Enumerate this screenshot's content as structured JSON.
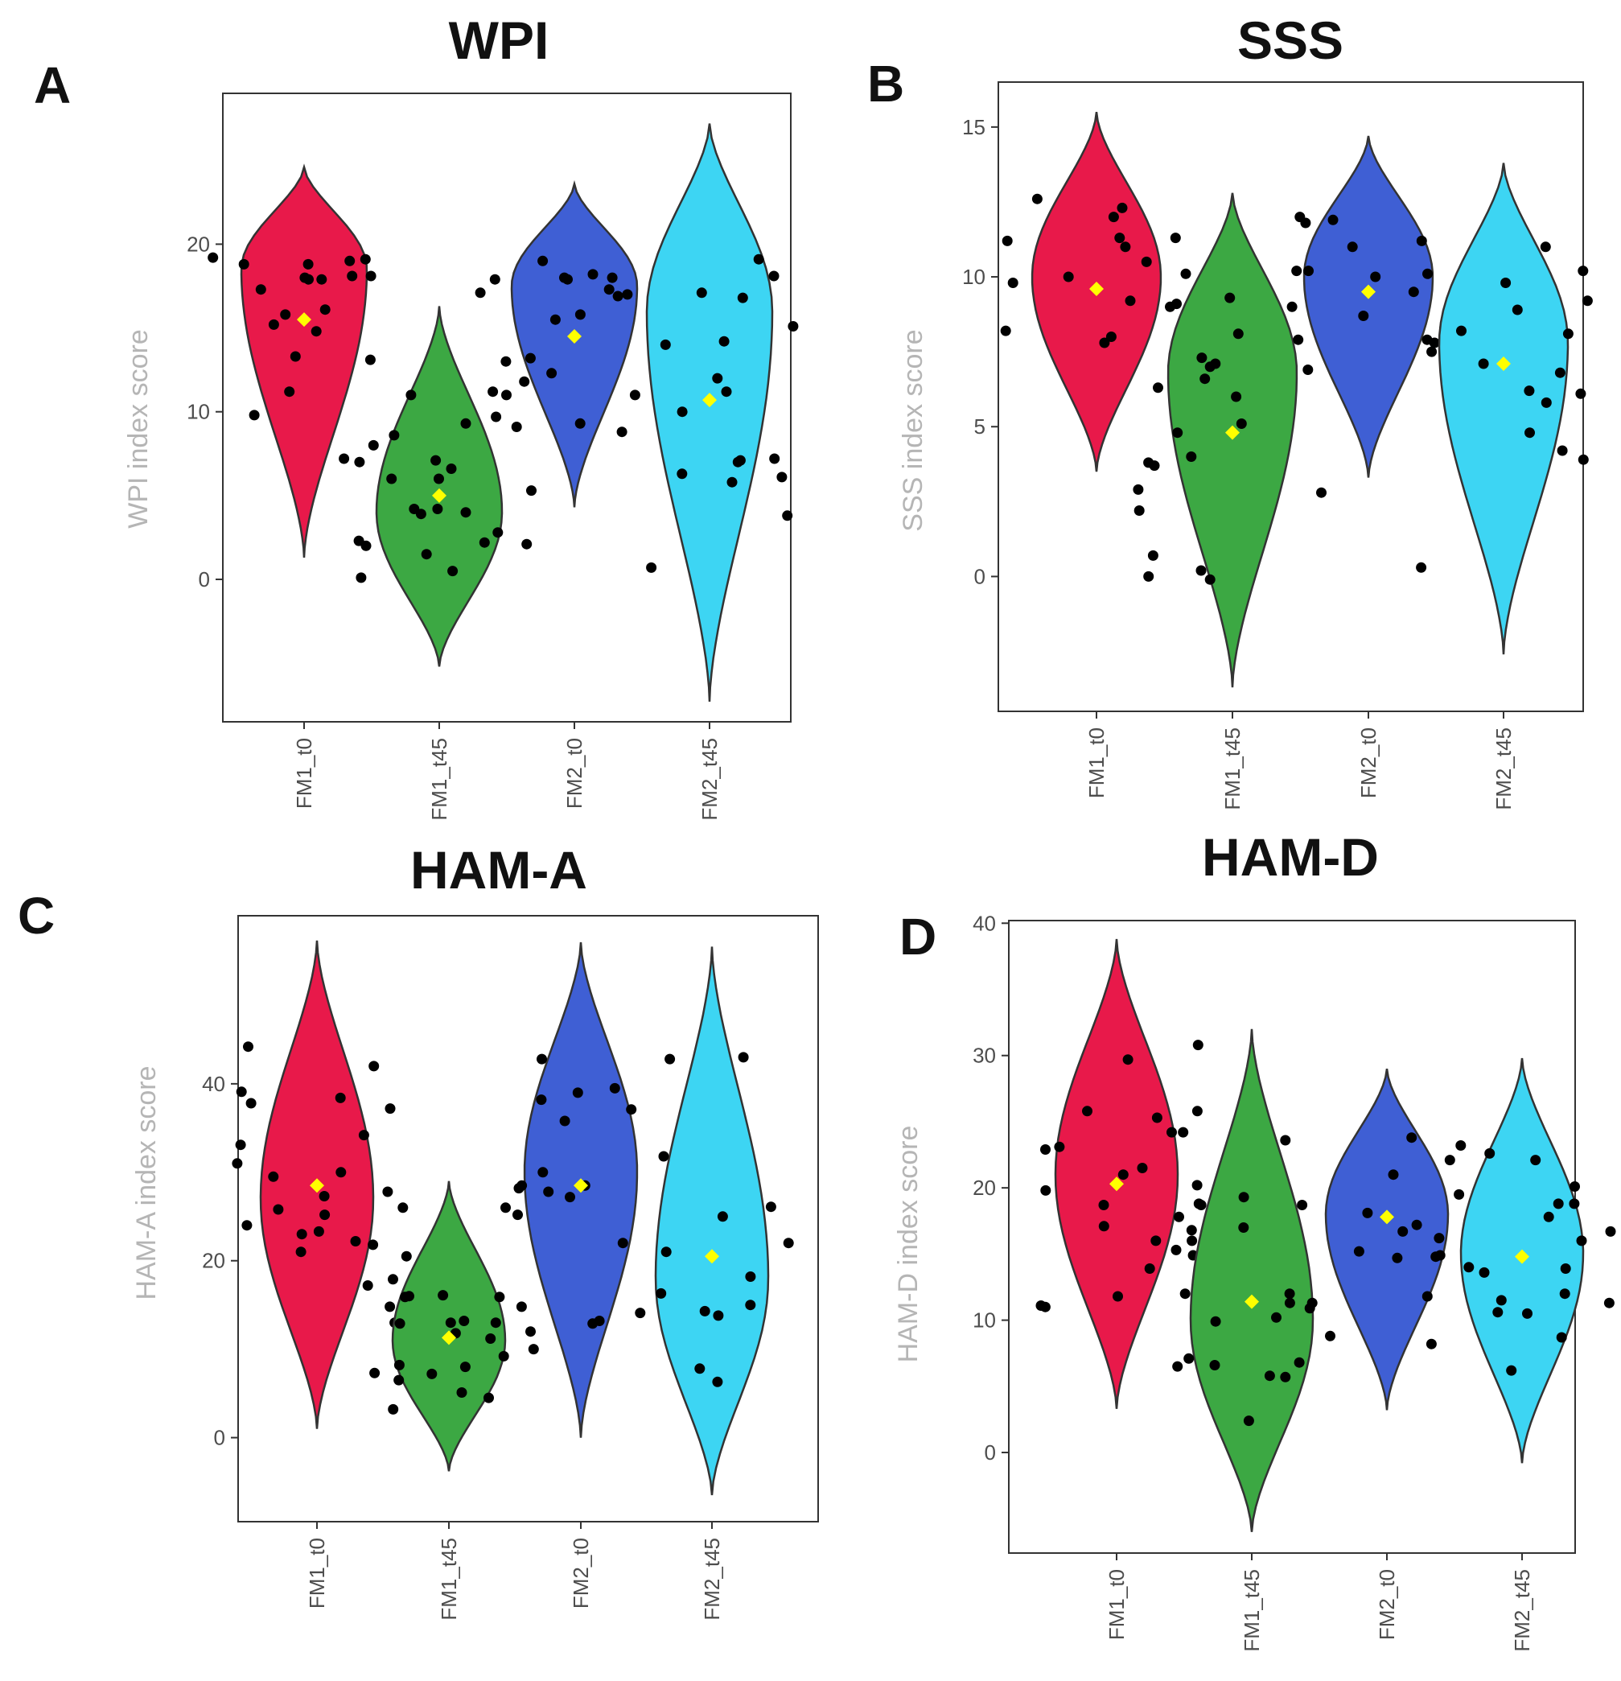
{
  "chart_data": [
    {
      "panel": "A",
      "type": "violin",
      "title": "WPI",
      "ylabel": "WPI index score",
      "xlabel": "",
      "categories": [
        "FM1_t0",
        "FM1_t45",
        "FM2_t0",
        "FM2_t45"
      ],
      "ylim": [
        -8.5,
        29
      ],
      "yticks": [
        0,
        10,
        20
      ],
      "colors": [
        "#e8194a",
        "#3ca843",
        "#3f5fd4",
        "#3dd5f3"
      ],
      "groups": [
        {
          "name": "FM1_t0",
          "mean": 15.5,
          "min": 1.3,
          "max": 24.6,
          "mode": 18.5,
          "points": [
            18.8,
            19.0,
            14.8,
            13.3,
            17.3,
            19.1,
            18.1,
            18.0,
            17.9,
            18.8,
            19.2,
            17.9,
            16.1,
            15.8,
            13.1,
            15.2,
            11.2,
            9.8,
            7.6,
            7.2,
            8.0,
            18.1
          ]
        },
        {
          "name": "FM1_t45",
          "mean": 5.0,
          "min": -5.2,
          "max": 16.3,
          "mode": 4.0,
          "points": [
            6.6,
            4.2,
            3.9,
            0.5,
            2.0,
            4.0,
            2.1,
            6.0,
            8.6,
            11.2,
            11.0,
            9.3,
            7.0,
            6.0,
            2.8,
            2.2,
            0.1,
            1.5,
            5.3,
            9.1,
            7.1,
            11.0,
            4.2,
            2.3
          ]
        },
        {
          "name": "FM2_t0",
          "mean": 14.5,
          "min": 4.3,
          "max": 23.6,
          "mode": 17.5,
          "points": [
            10.9,
            14.0,
            13.0,
            18.0,
            17.9,
            16.3,
            15.8,
            15.5,
            18.2,
            18.0,
            17.9,
            17.1,
            16.9,
            19.0,
            11.8,
            11.0,
            10.1,
            13.2,
            9.7,
            9.3,
            12.3,
            17.3
          ]
        },
        {
          "name": "FM2_t45",
          "mean": 10.7,
          "min": -7.3,
          "max": 27.2,
          "mode": 16.0,
          "points": [
            5.8,
            7.1,
            7.2,
            10.0,
            18.1,
            17.1,
            14.0,
            11.2,
            8.8,
            6.3,
            6.1,
            0.7,
            3.8,
            7.0,
            19.1,
            17.0,
            16.8,
            15.1,
            14.2,
            12.0
          ]
        }
      ]
    },
    {
      "panel": "B",
      "type": "violin",
      "title": "SSS",
      "ylabel": "SSS index score",
      "xlabel": "",
      "categories": [
        "FM1_t0",
        "FM1_t45",
        "FM2_t0",
        "FM2_t45"
      ],
      "ylim": [
        -4.5,
        16.5
      ],
      "yticks": [
        0,
        5,
        10,
        15
      ],
      "colors": [
        "#e8194a",
        "#3ca843",
        "#3f5fd4",
        "#3dd5f3"
      ],
      "groups": [
        {
          "name": "FM1_t0",
          "mean": 9.6,
          "min": 3.5,
          "max": 15.5,
          "mode": 10.0,
          "points": [
            12.0,
            11.2,
            10.0,
            9.0,
            12.6,
            11.3,
            11.0,
            10.5,
            9.8,
            9.2,
            8.3,
            8.0,
            7.8,
            12.3,
            11.3,
            10.1,
            9.1,
            8.2,
            6.3,
            6.8
          ]
        },
        {
          "name": "FM1_t45",
          "mean": 4.8,
          "min": -3.7,
          "max": 12.8,
          "mode": 6.8,
          "points": [
            7.0,
            6.9,
            7.1,
            4.0,
            2.9,
            2.2,
            5.1,
            6.0,
            6.6,
            0.2,
            0.0,
            0.7,
            2.8,
            3.8,
            4.8,
            8.1,
            9.3,
            7.3,
            3.7,
            -0.1
          ]
        },
        {
          "name": "FM2_t0",
          "mean": 9.5,
          "min": 3.3,
          "max": 14.7,
          "mode": 10.0,
          "points": [
            12.0,
            11.2,
            10.2,
            10.0,
            8.3,
            7.2,
            7.9,
            8.2,
            9.5,
            10.2,
            11.8,
            11.0,
            10.1,
            9.0,
            7.8,
            6.3,
            11.9,
            8.7
          ]
        },
        {
          "name": "FM2_t45",
          "mean": 7.1,
          "min": -2.6,
          "max": 13.8,
          "mode": 7.8,
          "points": [
            9.2,
            8.1,
            6.8,
            5.8,
            4.2,
            8.9,
            7.1,
            6.2,
            9.8,
            10.2,
            11.0,
            7.9,
            8.2,
            6.1,
            4.8,
            3.9,
            0.3,
            7.5
          ]
        }
      ]
    },
    {
      "panel": "C",
      "type": "violin",
      "title": "HAM-A",
      "ylabel": "HAM-A index score",
      "xlabel": "",
      "categories": [
        "FM1_t0",
        "FM1_t45",
        "FM2_t0",
        "FM2_t45"
      ],
      "ylim": [
        -9.5,
        59
      ],
      "yticks": [
        0,
        20,
        40
      ],
      "colors": [
        "#e8194a",
        "#3ca843",
        "#3f5fd4",
        "#3dd5f3"
      ],
      "groups": [
        {
          "name": "FM1_t0",
          "mean": 28.5,
          "min": 1.0,
          "max": 56.2,
          "mode": 27.0,
          "points": [
            38.4,
            23.3,
            14.8,
            22.2,
            24.0,
            25.8,
            27.8,
            30.0,
            37.2,
            39.1,
            37.8,
            33.1,
            31.0,
            29.5,
            27.3,
            25.2,
            23.0,
            21.0,
            13.0,
            44.2,
            42.0,
            34.2,
            26.0,
            17.2
          ]
        },
        {
          "name": "FM1_t45",
          "mean": 11.3,
          "min": -3.8,
          "max": 29.0,
          "mode": 11.0,
          "points": [
            8.0,
            7.2,
            6.5,
            9.2,
            11.8,
            13.0,
            15.9,
            16.0,
            13.2,
            12.0,
            14.8,
            11.2,
            7.3,
            10.0,
            5.1,
            3.2,
            4.5,
            12.9,
            17.9,
            20.5,
            21.8,
            13.0,
            8.2,
            16.1
          ]
        },
        {
          "name": "FM2_t0",
          "mean": 28.5,
          "min": 0.0,
          "max": 56.0,
          "mode": 30.0,
          "points": [
            39.5,
            35.8,
            28.2,
            22.0,
            13.2,
            38.2,
            28.5,
            27.8,
            27.2,
            25.2,
            26.0,
            30.0,
            42.8,
            39.0,
            37.1,
            28.5,
            15.9,
            12.9
          ]
        },
        {
          "name": "FM2_t45",
          "mean": 20.5,
          "min": -6.5,
          "max": 55.5,
          "mode": 18.0,
          "points": [
            31.8,
            21.0,
            14.3,
            6.3,
            42.8,
            18.2,
            16.3,
            25.0,
            22.0,
            15.0,
            13.8,
            7.8,
            26.1,
            43.0,
            14.1
          ]
        }
      ]
    },
    {
      "panel": "D",
      "type": "violin",
      "title": "HAM-D",
      "ylabel": "HAM-D index score",
      "xlabel": "",
      "categories": [
        "FM1_t0",
        "FM1_t45",
        "FM2_t0",
        "FM2_t45"
      ],
      "ylim": [
        -7.6,
        40.2
      ],
      "yticks": [
        0,
        10,
        20,
        30,
        40
      ],
      "colors": [
        "#e8194a",
        "#3ca843",
        "#3f5fd4",
        "#3dd5f3"
      ],
      "groups": [
        {
          "name": "FM1_t0",
          "mean": 20.3,
          "min": 3.3,
          "max": 38.8,
          "mode": 21.0,
          "points": [
            29.7,
            25.8,
            25.3,
            21.0,
            18.7,
            17.8,
            13.9,
            11.1,
            18.7,
            20.2,
            21.5,
            22.9,
            23.1,
            19.8,
            16.0,
            14.9,
            30.8,
            25.8,
            24.2,
            18.8,
            11.0,
            11.8,
            17.1
          ]
        },
        {
          "name": "FM1_t45",
          "mean": 11.4,
          "min": -6.0,
          "max": 32.0,
          "mode": 10.0,
          "points": [
            23.6,
            19.3,
            16.8,
            10.9,
            10.2,
            6.5,
            24.2,
            17.0,
            15.3,
            12.0,
            11.3,
            9.9,
            8.8,
            6.6,
            7.1,
            13.8,
            16.0,
            12.0,
            11.3,
            5.8,
            5.7,
            2.4,
            6.8
          ]
        },
        {
          "name": "FM2_t0",
          "mean": 17.8,
          "min": 3.2,
          "max": 29.0,
          "mode": 18.0,
          "points": [
            16.2,
            14.7,
            18.7,
            18.1,
            17.6,
            16.7,
            17.2,
            22.1,
            23.2,
            23.8,
            21.0,
            19.5,
            18.8,
            15.2,
            14.8,
            11.8,
            8.2
          ]
        },
        {
          "name": "FM2_t45",
          "mean": 14.8,
          "min": -0.8,
          "max": 29.8,
          "mode": 15.0,
          "points": [
            10.5,
            11.3,
            14.0,
            13.9,
            17.8,
            18.8,
            6.2,
            8.7,
            11.5,
            12.0,
            13.6,
            14.9,
            16.0,
            16.7,
            22.1,
            22.6,
            20.1,
            10.6,
            18.8
          ]
        }
      ]
    }
  ]
}
